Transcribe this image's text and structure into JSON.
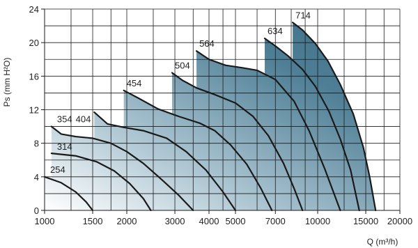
{
  "chart_data": {
    "type": "line",
    "title": "",
    "xlabel": "Q (m³/h)",
    "ylabel": "Ps (mm H²O)",
    "x_scale": "log",
    "x_range": [
      1000,
      20000
    ],
    "y_range": [
      0,
      24
    ],
    "grid": true,
    "legend": "none",
    "x_ticks": [
      1000,
      1500,
      2000,
      3000,
      4000,
      5000,
      7000,
      10000,
      15000,
      20000
    ],
    "x_tick_labels": [
      "1000",
      "1500",
      "2000",
      "3000",
      "4000",
      "5000",
      "7000",
      "10000",
      "15000",
      "20000"
    ],
    "y_ticks": [
      0,
      4,
      8,
      12,
      16,
      20,
      24
    ],
    "y_tick_labels": [
      "0",
      "4",
      "8",
      "12",
      "16",
      "20",
      "24"
    ],
    "series": [
      {
        "name": "254",
        "x": [
          1000,
          1150,
          1300,
          1420,
          1500
        ],
        "y": [
          4.0,
          3.3,
          2.2,
          1.0,
          0.0
        ]
      },
      {
        "name": "314",
        "x": [
          1060,
          1300,
          1550,
          1800,
          2050,
          2300,
          2450
        ],
        "y": [
          6.8,
          6.5,
          5.8,
          4.7,
          3.2,
          1.4,
          0.0
        ]
      },
      {
        "name": "354",
        "x": [
          1060,
          1150,
          1300,
          1500,
          1750,
          2000,
          2300,
          2700,
          3100,
          3500
        ],
        "y": [
          10.0,
          9.1,
          8.8,
          8.6,
          8.0,
          7.0,
          5.6,
          3.6,
          1.8,
          0.0
        ]
      },
      {
        "name": "404",
        "x": [
          1520,
          1700,
          1950,
          2300,
          2800,
          3300,
          3900,
          4500,
          5000
        ],
        "y": [
          11.7,
          10.3,
          9.9,
          9.5,
          8.6,
          7.0,
          4.8,
          2.2,
          0.0
        ]
      },
      {
        "name": "454",
        "x": [
          1950,
          2200,
          2600,
          3100,
          3700,
          4200,
          4800,
          5500,
          6200,
          6800
        ],
        "y": [
          14.3,
          13.4,
          12.1,
          11.2,
          10.4,
          9.5,
          7.8,
          5.5,
          2.6,
          0.0
        ]
      },
      {
        "name": "504",
        "x": [
          2930,
          3200,
          3600,
          4200,
          5000,
          5800,
          6600,
          7500,
          8200,
          8800
        ],
        "y": [
          16.4,
          15.5,
          14.6,
          13.8,
          12.8,
          11.2,
          8.9,
          5.6,
          2.6,
          0.0
        ]
      },
      {
        "name": "564",
        "x": [
          3600,
          4000,
          4600,
          5300,
          6000,
          7000,
          8200,
          9300,
          10600,
          12100
        ],
        "y": [
          19.0,
          18.0,
          17.3,
          17.0,
          16.7,
          15.6,
          13.0,
          9.5,
          5.0,
          0.0
        ]
      },
      {
        "name": "634",
        "x": [
          6400,
          7000,
          7800,
          8800,
          9800,
          11000,
          12100,
          13200,
          14200
        ],
        "y": [
          20.5,
          19.6,
          18.4,
          16.8,
          14.8,
          11.8,
          8.5,
          4.8,
          0.0
        ]
      },
      {
        "name": "714",
        "x": [
          8100,
          8800,
          9800,
          10900,
          12100,
          13500,
          14700,
          15500,
          16300
        ],
        "y": [
          22.4,
          21.5,
          19.9,
          17.8,
          15.0,
          11.5,
          7.5,
          4.0,
          0.0
        ]
      }
    ]
  }
}
